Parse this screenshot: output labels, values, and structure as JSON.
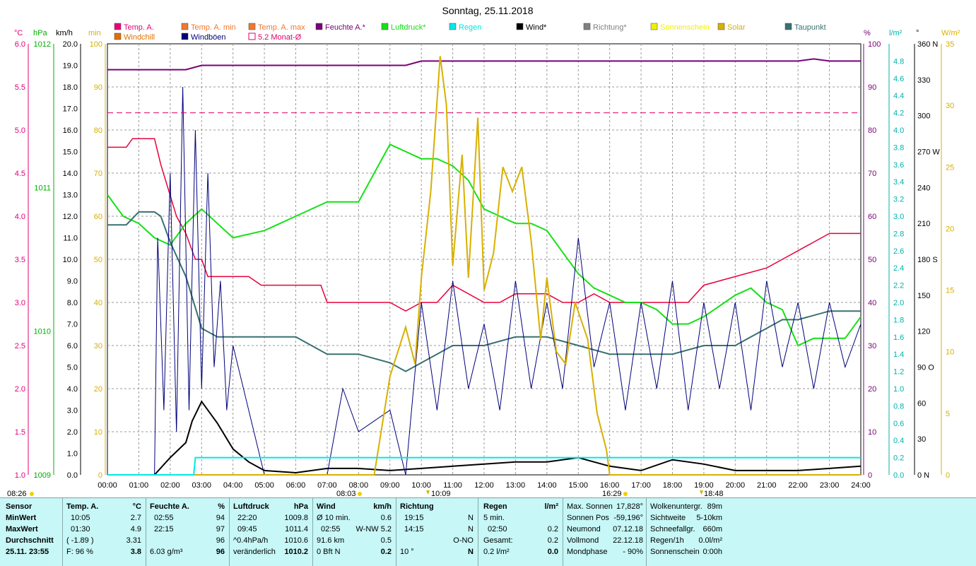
{
  "title": "Sonntag, 25.11.2018",
  "colors": {
    "temp": "#e8003c",
    "temp_min": "#f07830",
    "temp_max": "#f07830",
    "feuchte": "#7a0078",
    "luftdruck": "#16e016",
    "regen": "#00e8e8",
    "wind": "#000000",
    "windboeen": "#00007a",
    "solar": "#d8b000",
    "taupunkt": "#3a7070",
    "monat": "#e0006a",
    "windchill": "#c00000",
    "richtung": "#9a9a9a",
    "axis_c": "#e0007a",
    "axis_hpa": "#00b000",
    "axis_kmh": "#000000",
    "axis_min": "#d8b000",
    "axis_pct": "#7a0078",
    "axis_lm2": "#00b0b0",
    "axis_deg": "#000000",
    "axis_wm2": "#d8b000",
    "stats_bg": "#c7f7f7"
  },
  "legend": [
    {
      "label": "Temp. A.",
      "color": "#e8007a",
      "marker": "square"
    },
    {
      "label": "Temp. A. min",
      "color": "#f07830",
      "marker": "square"
    },
    {
      "label": "Temp. A. max",
      "color": "#f07830",
      "marker": "square"
    },
    {
      "label": "Feuchte A.*",
      "color": "#7a0078",
      "marker": "square"
    },
    {
      "label": "Luftdruck*",
      "color": "#16e016",
      "marker": "square"
    },
    {
      "label": "Regen",
      "color": "#00e8e8",
      "marker": "square"
    },
    {
      "label": "Wind*",
      "color": "#000000",
      "marker": "square"
    },
    {
      "label": "Richtung*",
      "color": "#808080",
      "marker": "square"
    },
    {
      "label": "Sonnenschein",
      "color": "#f0f000",
      "marker": "square"
    },
    {
      "label": "Solar",
      "color": "#d8b000",
      "marker": "square"
    },
    {
      "label": "Taupunkt",
      "color": "#3a7070",
      "marker": "square"
    },
    {
      "label": "Windchill",
      "color": "#e07000",
      "marker": "square"
    },
    {
      "label": "Windböen",
      "color": "#00007a",
      "marker": "square"
    },
    {
      "label": "5.2 Monat-Ø",
      "color": "#e0006a",
      "marker": "hollow"
    }
  ],
  "chart_data": {
    "type": "line",
    "x_ticks": [
      "00:00",
      "01:00",
      "02:00",
      "03:00",
      "04:00",
      "05:00",
      "06:00",
      "07:00",
      "08:00",
      "09:00",
      "10:00",
      "11:00",
      "12:00",
      "13:00",
      "14:00",
      "15:00",
      "16:00",
      "17:00",
      "18:00",
      "19:00",
      "20:00",
      "21:00",
      "22:00",
      "23:00",
      "24:00"
    ],
    "markers": {
      "sunrise": "08:03",
      "sunrise_left": "08:26",
      "max_sun": "10:09",
      "sunset": "16:29",
      "moon": "18:48"
    },
    "axes": {
      "temp_c": {
        "unit": "°C",
        "range": [
          1.0,
          6.0
        ],
        "ticks": [
          "1.0",
          "1.5",
          "2.0",
          "2.5",
          "3.0",
          "3.5",
          "4.0",
          "4.5",
          "5.0",
          "5.5",
          "6.0"
        ]
      },
      "pressure_hpa": {
        "unit": "hPa",
        "range": [
          1009,
          1012
        ],
        "ticks": [
          "1009",
          "1010",
          "1011",
          "1012"
        ]
      },
      "wind_kmh": {
        "unit": "km/h",
        "range": [
          0,
          20
        ],
        "ticks": [
          "0.0",
          "1.0",
          "2.0",
          "3.0",
          "4.0",
          "5.0",
          "6.0",
          "7.0",
          "8.0",
          "9.0",
          "10.0",
          "11.0",
          "12.0",
          "13.0",
          "14.0",
          "15.0",
          "16.0",
          "17.0",
          "18.0",
          "19.0",
          "20.0"
        ]
      },
      "sun_min": {
        "unit": "min",
        "range": [
          0,
          100
        ],
        "ticks": [
          "0",
          "10",
          "20",
          "30",
          "40",
          "50",
          "60",
          "70",
          "80",
          "90",
          "100"
        ]
      },
      "humidity_pct": {
        "unit": "%",
        "range": [
          0,
          100
        ],
        "ticks": [
          "0",
          "10",
          "20",
          "30",
          "40",
          "50",
          "60",
          "70",
          "80",
          "90",
          "100"
        ]
      },
      "rain_lm2": {
        "unit": "l/m²",
        "range": [
          0,
          5.0
        ],
        "ticks": [
          "0.0",
          "0.2",
          "0.4",
          "0.6",
          "0.8",
          "1.0",
          "1.2",
          "1.4",
          "1.6",
          "1.8",
          "2.0",
          "2.2",
          "2.4",
          "2.6",
          "2.8",
          "3.0",
          "3.2",
          "3.4",
          "3.6",
          "3.8",
          "4.0",
          "4.2",
          "4.4",
          "4.6",
          "4.8"
        ]
      },
      "direction_deg": {
        "unit": "°",
        "range": [
          0,
          360
        ],
        "ticks": [
          "0 N",
          "30",
          "60",
          "90 O",
          "120",
          "150",
          "180 S",
          "210",
          "240",
          "270 W",
          "300",
          "330",
          "360 N"
        ]
      },
      "solar_wm2": {
        "unit": "W/m²",
        "range": [
          0,
          35
        ],
        "ticks": [
          "0",
          "5",
          "10",
          "15",
          "20",
          "25",
          "30",
          "35"
        ]
      }
    },
    "series": [
      {
        "name": "Temp. A.",
        "axis": "temp_c",
        "x": [
          0,
          0.6,
          0.8,
          1.5,
          1.7,
          2.2,
          2.5,
          2.8,
          3.0,
          3.2,
          4.0,
          4.5,
          4.9,
          5.0,
          6.0,
          6.8,
          7.0,
          8.0,
          9.0,
          9.5,
          10.0,
          10.5,
          11.0,
          12.0,
          12.5,
          13.0,
          14.0,
          14.5,
          15.0,
          15.5,
          16.0,
          17.0,
          18.0,
          18.5,
          19.0,
          20.0,
          21.0,
          21.5,
          22.0,
          22.5,
          23.0,
          24.0
        ],
        "y": [
          4.8,
          4.8,
          4.9,
          4.9,
          4.6,
          4.0,
          3.8,
          3.5,
          3.5,
          3.3,
          3.3,
          3.3,
          3.2,
          3.2,
          3.2,
          3.2,
          3.0,
          3.0,
          3.0,
          2.9,
          3.0,
          3.0,
          3.2,
          3.0,
          3.0,
          3.1,
          3.1,
          3.0,
          3.0,
          3.1,
          3.0,
          3.0,
          3.0,
          3.0,
          3.2,
          3.3,
          3.4,
          3.5,
          3.6,
          3.7,
          3.8,
          3.8
        ]
      },
      {
        "name": "Feuchte A.*",
        "axis": "humidity_pct",
        "x": [
          0,
          2.5,
          3.0,
          4.0,
          8.0,
          9.5,
          10.0,
          12.0,
          16.0,
          22.0,
          22.5,
          23.0,
          24.0
        ],
        "y": [
          94,
          94,
          95,
          95,
          95,
          95,
          96,
          96,
          96,
          96,
          96.5,
          96,
          96
        ]
      },
      {
        "name": "Luftdruck*",
        "axis": "pressure_hpa",
        "x": [
          0,
          0.5,
          1.0,
          1.5,
          2.0,
          2.5,
          3.0,
          3.5,
          4.0,
          5.0,
          6.0,
          7.0,
          8.0,
          8.5,
          9.0,
          9.5,
          10.0,
          10.5,
          11.0,
          11.5,
          12.0,
          12.5,
          13.0,
          13.5,
          14.0,
          14.5,
          15.0,
          15.5,
          16.0,
          16.5,
          17.0,
          17.5,
          18.0,
          18.5,
          19.0,
          20.0,
          20.5,
          21.0,
          21.5,
          22.0,
          22.5,
          23.0,
          23.5,
          24.0
        ],
        "y": [
          1010.95,
          1010.8,
          1010.75,
          1010.65,
          1010.6,
          1010.75,
          1010.85,
          1010.75,
          1010.65,
          1010.7,
          1010.8,
          1010.9,
          1010.9,
          1011.1,
          1011.3,
          1011.25,
          1011.2,
          1011.2,
          1011.15,
          1011.05,
          1010.85,
          1010.8,
          1010.75,
          1010.75,
          1010.7,
          1010.55,
          1010.4,
          1010.3,
          1010.25,
          1010.2,
          1010.2,
          1010.15,
          1010.05,
          1010.05,
          1010.1,
          1010.25,
          1010.3,
          1010.2,
          1010.15,
          1009.9,
          1009.95,
          1009.95,
          1009.95,
          1010.1
        ]
      },
      {
        "name": "Taupunkt",
        "axis": "temp_c",
        "x": [
          0,
          0.6,
          1.0,
          1.5,
          1.7,
          2.0,
          2.5,
          3.0,
          3.5,
          4.0,
          5.0,
          6.0,
          7.0,
          8.0,
          9.0,
          9.5,
          10.0,
          10.5,
          11.0,
          12.0,
          13.0,
          14.0,
          15.0,
          16.0,
          17.0,
          18.0,
          19.0,
          20.0,
          20.5,
          21.0,
          21.5,
          22.0,
          23.0,
          24.0
        ],
        "y": [
          3.9,
          3.9,
          4.05,
          4.05,
          4.0,
          3.7,
          3.3,
          2.7,
          2.6,
          2.6,
          2.6,
          2.6,
          2.4,
          2.4,
          2.3,
          2.2,
          2.3,
          2.4,
          2.5,
          2.5,
          2.6,
          2.6,
          2.5,
          2.4,
          2.4,
          2.4,
          2.5,
          2.5,
          2.6,
          2.7,
          2.8,
          2.8,
          2.9,
          2.9
        ]
      },
      {
        "name": "Wind*",
        "axis": "wind_kmh",
        "x": [
          0,
          1.5,
          2.0,
          2.5,
          2.7,
          3.0,
          3.5,
          4.0,
          4.5,
          5.0,
          6.0,
          7.0,
          8.0,
          9.0,
          10.0,
          11.0,
          12.0,
          13.0,
          14.0,
          15.0,
          16.0,
          17.0,
          18.0,
          19.0,
          20.0,
          21.0,
          22.0,
          23.0,
          24.0
        ],
        "y": [
          0,
          0,
          0.8,
          1.5,
          2.5,
          3.4,
          2.4,
          1.2,
          0.6,
          0.2,
          0.1,
          0.3,
          0.3,
          0.2,
          0.3,
          0.4,
          0.5,
          0.6,
          0.6,
          0.8,
          0.4,
          0.2,
          0.7,
          0.5,
          0.2,
          0.2,
          0.2,
          0.3,
          0.4
        ]
      },
      {
        "name": "Windböen",
        "axis": "wind_kmh",
        "x": [
          0,
          1.5,
          1.6,
          1.8,
          2.0,
          2.2,
          2.4,
          2.6,
          2.8,
          3.0,
          3.2,
          3.4,
          3.6,
          3.8,
          4.0,
          4.5,
          5.0,
          6.0,
          7.0,
          7.5,
          8.0,
          9.0,
          9.5,
          10.0,
          10.5,
          11.0,
          11.5,
          12.0,
          12.5,
          13.0,
          13.5,
          14.0,
          14.5,
          15.0,
          15.5,
          16.0,
          16.5,
          17.0,
          17.5,
          18.0,
          18.5,
          19.0,
          19.5,
          20.0,
          20.5,
          21.0,
          21.5,
          22.0,
          22.5,
          23.0,
          23.5,
          24.0
        ],
        "y": [
          0,
          0,
          11,
          3,
          14,
          2,
          18,
          3,
          16,
          4,
          14,
          5,
          9,
          3,
          6,
          3,
          0,
          0,
          0,
          4,
          2,
          3,
          0,
          8,
          3,
          9,
          4,
          7,
          3,
          9,
          4,
          8,
          4,
          11,
          5,
          8,
          3,
          8,
          4,
          9,
          3,
          8,
          4,
          8,
          3,
          9,
          5,
          8,
          4,
          8,
          5,
          7
        ]
      },
      {
        "name": "Solar",
        "axis": "solar_wm2",
        "x": [
          0,
          8.5,
          9.0,
          9.5,
          9.8,
          10.0,
          10.3,
          10.6,
          10.8,
          11.0,
          11.3,
          11.5,
          11.8,
          12.0,
          12.3,
          12.6,
          12.9,
          13.2,
          13.5,
          13.8,
          14.0,
          14.3,
          14.6,
          14.9,
          15.3,
          15.6,
          15.9,
          16.0,
          24.0
        ],
        "y": [
          0,
          0,
          8,
          12,
          9,
          16,
          23,
          34,
          30,
          17,
          26,
          16,
          29,
          15,
          18,
          25,
          23,
          25,
          19,
          11,
          16,
          10,
          9,
          14,
          11,
          5,
          2,
          0,
          0
        ]
      },
      {
        "name": "Regen",
        "axis": "rain_lm2",
        "x": [
          0,
          2.75,
          2.8,
          24.0
        ],
        "y": [
          0,
          0,
          0.2,
          0.2
        ]
      },
      {
        "name": "5.2 Monat-Ø",
        "axis": "temp_c",
        "x": [
          0,
          24
        ],
        "y": [
          5.2,
          5.2
        ]
      }
    ]
  },
  "stats": {
    "headers": {
      "sensor": "Sensor",
      "temp": "Temp. A.",
      "temp_unit": "°C",
      "feuchte": "Feuchte A.",
      "feuchte_unit": "%",
      "druck": "Luftdruck",
      "druck_unit": "hPa",
      "wind": "Wind",
      "wind_unit": "km/h",
      "richtung": "Richtung",
      "regen": "Regen",
      "regen_unit": "l/m²"
    },
    "row_labels": [
      "MinWert",
      "MaxWert",
      "Durchschnitt",
      "25.11. 23:55"
    ],
    "temp": [
      [
        "10:05",
        "2.7"
      ],
      [
        "01:30",
        "4.9"
      ],
      [
        "( -1.89 )",
        "3.31"
      ],
      [
        "F: 96 %",
        "3.8"
      ]
    ],
    "feuchte": [
      [
        "02:55",
        "94"
      ],
      [
        "22:15",
        "97"
      ],
      [
        "",
        "96"
      ],
      [
        "6.03 g/m³",
        "96"
      ]
    ],
    "druck": [
      [
        "22:20",
        "1009.8"
      ],
      [
        "09:45",
        "1011.4"
      ],
      [
        "^0.4hPa/h",
        "1010.6"
      ],
      [
        "veränderlich",
        "1010.2"
      ]
    ],
    "wind": [
      [
        "Ø 10 min.",
        "0.6"
      ],
      [
        "02:55",
        "W-NW 5.2"
      ],
      [
        "91.6 km",
        "0.5"
      ],
      [
        "0 Bft N",
        "0.2"
      ]
    ],
    "richtung": [
      [
        "19:15",
        "N"
      ],
      [
        "14:15",
        "N"
      ],
      [
        "",
        "O-NO"
      ],
      [
        "10 °",
        "N"
      ]
    ],
    "regen": [
      [
        "5 min.",
        ""
      ],
      [
        "02:50",
        "0.2"
      ],
      [
        "Gesamt:",
        "0.2"
      ],
      [
        "0.2 l/m²",
        "0.0"
      ]
    ],
    "astro": [
      [
        "Max. Sonnen",
        "17,828°"
      ],
      [
        "Sonnen Pos",
        "-59,196°"
      ],
      [
        "Neumond",
        "07.12.18"
      ],
      [
        "Vollmond",
        "22.12.18"
      ],
      [
        "Mondphase",
        "- 90%"
      ]
    ],
    "misc": [
      [
        "Wolkenuntergr.",
        "89m"
      ],
      [
        "Sichtweite",
        "5-10km"
      ],
      [
        "Schneefallgr.",
        "660m"
      ],
      [
        "Regen/1h",
        "0.0l/m²"
      ],
      [
        "Sonnenschein",
        "0:00h"
      ]
    ]
  }
}
